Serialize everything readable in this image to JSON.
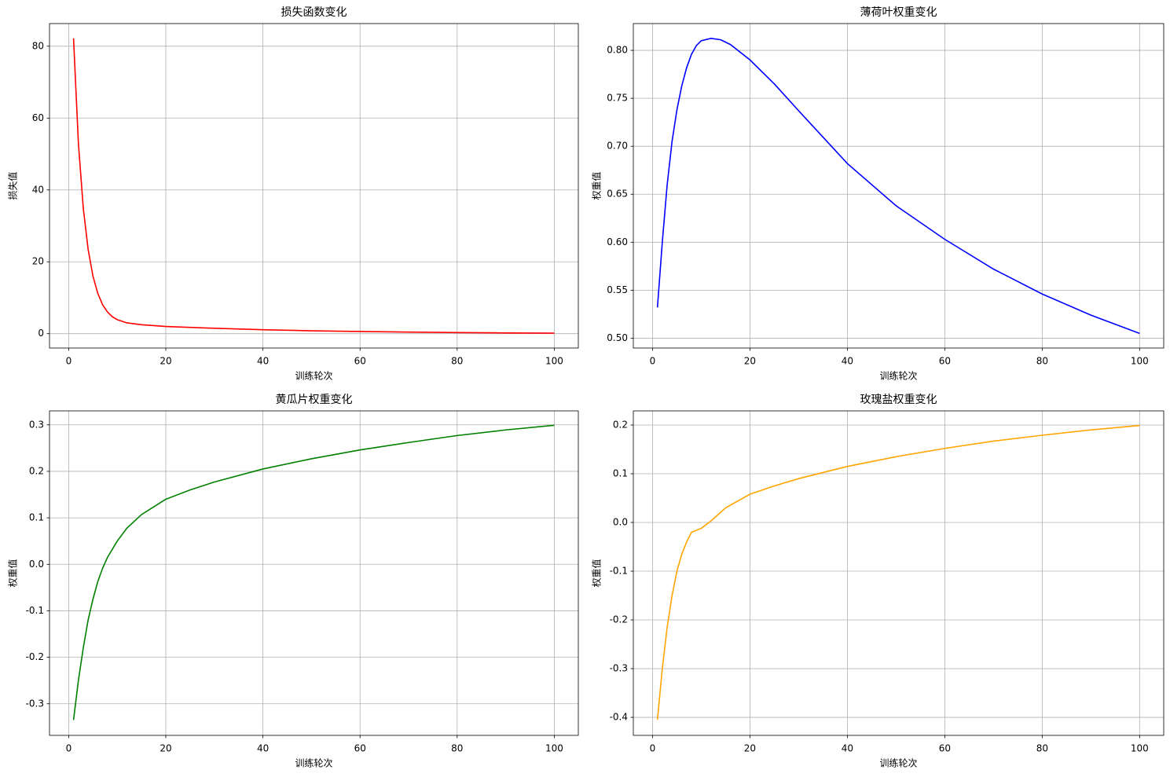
{
  "chart_data": [
    {
      "type": "line",
      "title": "损失函数变化",
      "xlabel": "训练轮次",
      "ylabel": "损失值",
      "color": "#ff0000",
      "grid": true,
      "x": [
        1,
        2,
        3,
        4,
        5,
        6,
        7,
        8,
        9,
        10,
        12,
        15,
        20,
        30,
        40,
        50,
        60,
        70,
        80,
        90,
        100
      ],
      "values": [
        82.2,
        53,
        35,
        23.5,
        16,
        11.2,
        8,
        6,
        4.7,
        3.9,
        3.0,
        2.5,
        2.0,
        1.5,
        1.1,
        0.8,
        0.6,
        0.45,
        0.3,
        0.2,
        0.15
      ],
      "xlim": [
        -3.95,
        104.95
      ],
      "xticks": [
        0,
        20,
        40,
        60,
        80,
        100
      ],
      "ylim": [
        -4.0,
        86.3
      ],
      "yticks": [
        0,
        20,
        40,
        60,
        80
      ]
    },
    {
      "type": "line",
      "title": "薄荷叶权重变化",
      "xlabel": "训练轮次",
      "ylabel": "权重值",
      "color": "#0000ff",
      "grid": true,
      "x": [
        1,
        2,
        3,
        4,
        5,
        6,
        7,
        8,
        9,
        10,
        12,
        14,
        16,
        20,
        25,
        30,
        40,
        50,
        60,
        70,
        80,
        90,
        100
      ],
      "values": [
        0.532,
        0.6,
        0.66,
        0.705,
        0.738,
        0.763,
        0.782,
        0.796,
        0.805,
        0.81,
        0.8125,
        0.811,
        0.806,
        0.79,
        0.765,
        0.737,
        0.682,
        0.638,
        0.603,
        0.572,
        0.546,
        0.524,
        0.505
      ],
      "xlim": [
        -3.95,
        104.95
      ],
      "xticks": [
        0,
        20,
        40,
        60,
        80,
        100
      ],
      "ylim": [
        0.4897,
        0.8279
      ],
      "yticks": [
        {
          "value": 0.5,
          "label": "0.50"
        },
        0.55,
        {
          "value": 0.6,
          "label": "0.60"
        },
        0.65,
        {
          "value": 0.7,
          "label": "0.70"
        },
        0.75,
        {
          "value": 0.8,
          "label": "0.80"
        }
      ]
    },
    {
      "type": "line",
      "title": "黄瓜片权重变化",
      "xlabel": "训练轮次",
      "ylabel": "权重值",
      "color": "#008000",
      "grid": true,
      "x": [
        1,
        2,
        3,
        4,
        5,
        6,
        7,
        8,
        10,
        12,
        15,
        20,
        25,
        30,
        40,
        50,
        60,
        70,
        80,
        90,
        100
      ],
      "values": [
        -0.335,
        -0.25,
        -0.18,
        -0.12,
        -0.075,
        -0.037,
        -0.008,
        0.015,
        0.05,
        0.078,
        0.107,
        0.14,
        0.16,
        0.177,
        0.205,
        0.227,
        0.246,
        0.262,
        0.277,
        0.289,
        0.299
      ],
      "xlim": [
        -3.95,
        104.95
      ],
      "xticks": [
        0,
        20,
        40,
        60,
        80,
        100
      ],
      "ylim": [
        -0.368,
        0.33
      ],
      "yticks": [
        -0.3,
        -0.2,
        -0.1,
        {
          "value": 0,
          "label": "0.0"
        },
        0.1,
        0.2,
        0.3
      ]
    },
    {
      "type": "line",
      "title": "玫瑰盐权重变化",
      "xlabel": "训练轮次",
      "ylabel": "权重值",
      "color": "#ffa500",
      "grid": true,
      "x": [
        1,
        2,
        3,
        4,
        5,
        6,
        7,
        8,
        10,
        12,
        15,
        20,
        25,
        30,
        40,
        50,
        60,
        70,
        80,
        90,
        100
      ],
      "values": [
        -0.405,
        -0.3,
        -0.215,
        -0.15,
        -0.1,
        -0.065,
        -0.04,
        -0.02,
        -0.012,
        0.003,
        0.03,
        0.058,
        0.075,
        0.09,
        0.115,
        0.135,
        0.152,
        0.167,
        0.179,
        0.19,
        0.199
      ],
      "xlim": [
        -3.95,
        104.95
      ],
      "xticks": [
        0,
        20,
        40,
        60,
        80,
        100
      ],
      "ylim": [
        -0.437,
        0.229
      ],
      "yticks": [
        -0.4,
        -0.3,
        -0.2,
        -0.1,
        {
          "value": 0,
          "label": "0.0"
        },
        0.1,
        0.2
      ]
    }
  ]
}
